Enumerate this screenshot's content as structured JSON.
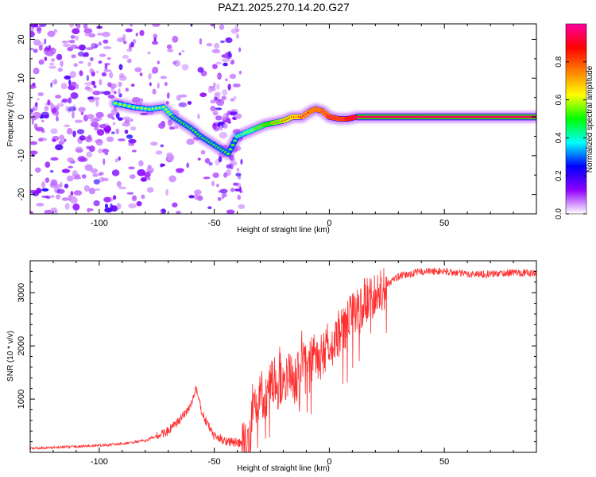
{
  "title": "PAZ1.2025.270.14.20.G27",
  "chart_data": [
    {
      "type": "heatmap",
      "title": "PAZ1.2025.270.14.20.G27",
      "xlabel": "Height of straight line (km)",
      "ylabel": "Frequency (Hz)",
      "xlim": [
        -130,
        90
      ],
      "ylim": [
        -25,
        24
      ],
      "xticks": [
        -100,
        -50,
        0,
        50
      ],
      "yticks": [
        -20,
        -10,
        0,
        10,
        20
      ],
      "colorbar": {
        "label": "Normalized spectral amplitude",
        "range": [
          0.0,
          1.0
        ],
        "ticks": [
          0.0,
          0.2,
          0.4,
          0.6,
          0.8
        ],
        "tick_labels": [
          "0.0",
          "0.2",
          "0.4",
          "0.6",
          "0.8"
        ],
        "colors": [
          "#ffffff",
          "#9000ff",
          "#0000ff",
          "#00ffff",
          "#00ff00",
          "#ffff00",
          "#ff8000",
          "#ff0000",
          "#ff00a0"
        ]
      },
      "ridge": {
        "x": [
          -93,
          -85,
          -78,
          -72,
          -68,
          -64,
          -60,
          -56,
          -52,
          -48,
          -44,
          -40,
          -36,
          -32,
          -28,
          -24,
          -20,
          -16,
          -12,
          -8,
          -6,
          -3,
          0,
          4,
          8,
          12,
          40,
          90
        ],
        "freq": [
          3.5,
          2.5,
          2,
          2.5,
          0,
          -1.5,
          -3,
          -5,
          -6.5,
          -8,
          -9.5,
          -5,
          -4,
          -3,
          -2,
          -1.5,
          -1,
          0,
          0,
          1.5,
          2,
          1.5,
          0,
          -0.5,
          -0.5,
          0,
          0,
          0
        ],
        "amplitude": [
          0.35,
          0.35,
          0.35,
          0.35,
          0.3,
          0.3,
          0.3,
          0.3,
          0.3,
          0.3,
          0.3,
          0.35,
          0.4,
          0.45,
          0.5,
          0.55,
          0.6,
          0.65,
          0.7,
          0.75,
          0.75,
          0.75,
          0.8,
          0.8,
          0.85,
          0.95,
          0.95,
          0.95
        ]
      }
    },
    {
      "type": "line",
      "xlabel": "Height of straight line (km)",
      "ylabel": "SNR (10 * v/v)",
      "xlim": [
        -130,
        90
      ],
      "ylim": [
        0,
        3600
      ],
      "xticks": [
        -100,
        -50,
        0,
        50
      ],
      "yticks": [
        1000,
        2000,
        3000
      ],
      "color": "#ff3030",
      "series": [
        {
          "name": "SNR",
          "x": [
            -130,
            -120,
            -110,
            -100,
            -90,
            -80,
            -70,
            -65,
            -60,
            -58,
            -55,
            -50,
            -45,
            -40,
            -37,
            -35,
            -33,
            -30,
            -27,
            -25,
            -22,
            -20,
            -18,
            -15,
            -12,
            -10,
            -7,
            -5,
            -2,
            0,
            3,
            5,
            8,
            10,
            15,
            20,
            25,
            30,
            35,
            40,
            50,
            60,
            70,
            80,
            90
          ],
          "values": [
            80,
            90,
            110,
            130,
            160,
            220,
            400,
            600,
            900,
            1200,
            700,
            300,
            220,
            180,
            150,
            160,
            900,
            1100,
            1000,
            1300,
            1400,
            1200,
            1500,
            1300,
            1700,
            1600,
            1800,
            1700,
            1900,
            2100,
            2000,
            2300,
            2400,
            2600,
            2800,
            3000,
            3150,
            3300,
            3350,
            3400,
            3400,
            3350,
            3350,
            3380,
            3360
          ]
        }
      ]
    }
  ]
}
